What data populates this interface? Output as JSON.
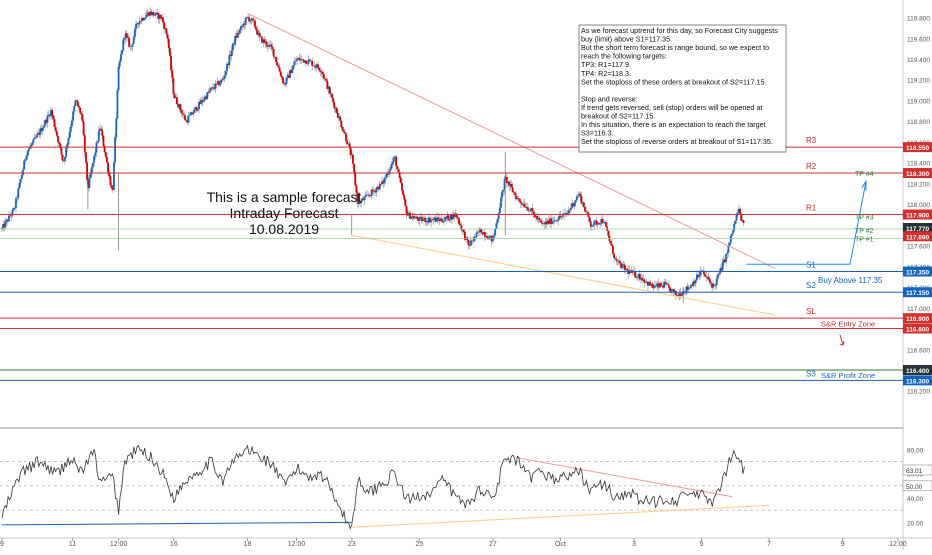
{
  "chart_data": {
    "type": "candlestick",
    "main_panel": {
      "y_range": [
        115.85,
        119.95
      ],
      "y_ticks": [
        "119.800",
        "119.600",
        "119.400",
        "119.200",
        "119.000",
        "118.800",
        "118.600",
        "118.400",
        "118.200",
        "118.000",
        "117.800",
        "117.600",
        "117.400",
        "117.200",
        "117.000",
        "116.800",
        "116.600",
        "116.400",
        "116.200"
      ],
      "y_tick_values": [
        119.8,
        119.6,
        119.4,
        119.2,
        119.0,
        118.8,
        118.6,
        118.4,
        118.2,
        118.0,
        117.8,
        117.6,
        117.4,
        117.2,
        117.0,
        116.8,
        116.6,
        116.4,
        116.2
      ],
      "x_ticks": [
        {
          "label": "9",
          "x": 0
        },
        {
          "label": "11",
          "x": 11.5
        },
        {
          "label": "12:00",
          "x": 19
        },
        {
          "label": "16",
          "x": 28
        },
        {
          "label": "18",
          "x": 40
        },
        {
          "label": "12:00",
          "x": 48
        },
        {
          "label": "23",
          "x": 57
        },
        {
          "label": "25",
          "x": 68
        },
        {
          "label": "27",
          "x": 80
        },
        {
          "label": "Oct",
          "x": 91
        },
        {
          "label": "3",
          "x": 103
        },
        {
          "label": "5",
          "x": 114
        },
        {
          "label": "7",
          "x": 125
        },
        {
          "label": "9",
          "x": 137
        },
        {
          "label": "12:00",
          "x": 146
        }
      ],
      "x_range": [
        0,
        146.5
      ],
      "annotation_lines": [
        "This is a sample forecast",
        "Intraday Forecast",
        "10.08.2019"
      ],
      "note_lines": [
        "As we forecast uptrend for this day, so Forecast City suggests",
        "buy (limit) above S1=117.35.",
        "But the short term forecast is range bound, so we expect to",
        "reach the following targets:",
        "TP3: R1=117.9.",
        "TP4: R2=118.3.",
        "Set the stoploss of these orders at breakout of S2=117.15.",
        "",
        "Stop and reverse:",
        "If trend gets reversed, sell (stop) orders will be opened at",
        "breakout of S2=117.15.",
        "In this situation, there is an expectation to reach the target",
        "S3=116.3.",
        "Set the stoploss of reverse orders at breakout of S1=117.35."
      ],
      "levels": [
        {
          "label": "R3",
          "value": 118.55,
          "tag": "118.550",
          "color": "#d32f2f",
          "label_color": "#c62828"
        },
        {
          "label": "R2",
          "value": 118.3,
          "tag": "118.300",
          "color": "#d32f2f",
          "label_color": "#c62828"
        },
        {
          "label": "R1",
          "value": 117.9,
          "tag": "117.900",
          "color": "#d32f2f",
          "label_color": "#c62828"
        },
        {
          "label": "S1",
          "value": 117.35,
          "tag": "117.350",
          "color": "#1565c0",
          "label_color": "#1565c0"
        },
        {
          "label": "S2",
          "value": 117.15,
          "tag": "117.150",
          "color": "#1565c0",
          "label_color": "#1565c0"
        },
        {
          "label": "SL",
          "value": 116.9,
          "tag": "116.900",
          "color": "#d32f2f",
          "label_color": "#c62828"
        },
        {
          "label": "",
          "value": 116.8,
          "tag": "116.800",
          "color": "#d32f2f",
          "label_color": "#c62828"
        },
        {
          "label": "",
          "value": 116.4,
          "tag": "116.400",
          "color": "#2e7d32",
          "label_color": "#2e7d32",
          "tag_color": "#263238"
        },
        {
          "label": "S3",
          "value": 116.3,
          "tag": "116.300",
          "color": "#1565c0",
          "label_color": "#1565c0"
        }
      ],
      "price_tags": [
        {
          "tag": "117.770",
          "value": 117.77,
          "color": "#263238"
        },
        {
          "tag": "117.690",
          "value": 117.69,
          "color": "#d32f2f"
        }
      ],
      "tp_levels": [
        {
          "label": "TP #4",
          "value": 118.3
        },
        {
          "label": "TP #3",
          "value": 117.88
        },
        {
          "label": "TP #2",
          "value": 117.75
        },
        {
          "label": "TP #1",
          "value": 117.67
        }
      ],
      "tp_lines": [
        117.76,
        117.67
      ],
      "zones": [
        {
          "label": "S&R Entry Zone",
          "value": 116.85,
          "color": "#c62828"
        },
        {
          "label": "S&R Profit Zone",
          "value": 116.35,
          "color": "#1565c0"
        }
      ],
      "buy_label": "Buy Above 117.35",
      "trendlines": [
        {
          "color": "#ef9a9a",
          "from": [
            40,
            119.84
          ],
          "to": [
            126,
            117.38
          ]
        },
        {
          "color": "#ffcc80",
          "from": [
            57,
            117.7
          ],
          "to": [
            126,
            116.93
          ]
        }
      ],
      "close_anchors": [
        [
          0,
          117.76
        ],
        [
          2,
          117.95
        ],
        [
          4,
          118.5
        ],
        [
          6,
          118.68
        ],
        [
          8,
          118.9
        ],
        [
          10,
          118.4
        ],
        [
          12,
          119.0
        ],
        [
          13,
          118.85
        ],
        [
          14,
          118.15
        ],
        [
          16,
          118.75
        ],
        [
          18,
          118.1
        ],
        [
          19,
          119.3
        ],
        [
          20,
          119.65
        ],
        [
          21,
          119.5
        ],
        [
          22,
          119.75
        ],
        [
          24,
          119.85
        ],
        [
          26,
          119.8
        ],
        [
          27,
          119.6
        ],
        [
          28,
          119.05
        ],
        [
          30,
          118.8
        ],
        [
          32,
          118.95
        ],
        [
          34,
          119.1
        ],
        [
          36,
          119.2
        ],
        [
          38,
          119.6
        ],
        [
          40,
          119.8
        ],
        [
          41,
          119.75
        ],
        [
          42,
          119.6
        ],
        [
          44,
          119.5
        ],
        [
          46,
          119.15
        ],
        [
          48,
          119.4
        ],
        [
          50,
          119.38
        ],
        [
          52,
          119.3
        ],
        [
          54,
          118.98
        ],
        [
          56,
          118.65
        ],
        [
          57,
          118.45
        ],
        [
          58,
          118.0
        ],
        [
          60,
          118.1
        ],
        [
          62,
          118.2
        ],
        [
          64,
          118.45
        ],
        [
          66,
          117.9
        ],
        [
          68,
          117.85
        ],
        [
          70,
          117.85
        ],
        [
          72,
          117.85
        ],
        [
          74,
          117.9
        ],
        [
          76,
          117.6
        ],
        [
          78,
          117.75
        ],
        [
          80,
          117.65
        ],
        [
          82,
          118.25
        ],
        [
          84,
          118.05
        ],
        [
          86,
          117.95
        ],
        [
          88,
          117.8
        ],
        [
          90,
          117.85
        ],
        [
          92,
          117.9
        ],
        [
          94,
          118.1
        ],
        [
          96,
          117.8
        ],
        [
          98,
          117.85
        ],
        [
          100,
          117.45
        ],
        [
          102,
          117.35
        ],
        [
          104,
          117.3
        ],
        [
          106,
          117.2
        ],
        [
          108,
          117.22
        ],
        [
          110,
          117.12
        ],
        [
          112,
          117.2
        ],
        [
          114,
          117.35
        ],
        [
          116,
          117.2
        ],
        [
          117,
          117.35
        ],
        [
          118,
          117.5
        ],
        [
          120,
          117.95
        ],
        [
          121,
          117.76
        ]
      ]
    },
    "oscillator_panel": {
      "y_range": [
        8,
        95
      ],
      "y_ticks": [
        "80.00",
        "60.00",
        "40.00",
        "20.00"
      ],
      "y_tick_values": [
        80,
        60,
        40,
        20
      ],
      "tags": [
        {
          "tag": "63.01",
          "value": 63,
          "color": "#ffffff",
          "text_color": "#333333"
        },
        {
          "tag": "50.00",
          "value": 50,
          "color": "#ffffff",
          "text_color": "#333333"
        }
      ],
      "dashed_levels": [
        70,
        50,
        30
      ],
      "trendlines": [
        {
          "color": "#ef9a9a",
          "from": [
            84,
            73
          ],
          "to": [
            119,
            41
          ]
        },
        {
          "color": "#ffcc80",
          "from": [
            57,
            16
          ],
          "to": [
            125,
            34
          ]
        },
        {
          "color": "#1565c0",
          "from": [
            0,
            18
          ],
          "to": [
            57,
            20
          ]
        }
      ],
      "anchors": [
        [
          0,
          25
        ],
        [
          3,
          60
        ],
        [
          6,
          70
        ],
        [
          9,
          60
        ],
        [
          11,
          72
        ],
        [
          13,
          62
        ],
        [
          15,
          78
        ],
        [
          16,
          52
        ],
        [
          18,
          58
        ],
        [
          19,
          30
        ],
        [
          20,
          70
        ],
        [
          22,
          80
        ],
        [
          24,
          75
        ],
        [
          26,
          62
        ],
        [
          28,
          40
        ],
        [
          30,
          55
        ],
        [
          32,
          62
        ],
        [
          34,
          70
        ],
        [
          36,
          55
        ],
        [
          38,
          72
        ],
        [
          40,
          80
        ],
        [
          42,
          74
        ],
        [
          44,
          68
        ],
        [
          46,
          50
        ],
        [
          48,
          64
        ],
        [
          50,
          58
        ],
        [
          52,
          60
        ],
        [
          54,
          45
        ],
        [
          56,
          22
        ],
        [
          57,
          16
        ],
        [
          58,
          55
        ],
        [
          60,
          45
        ],
        [
          62,
          52
        ],
        [
          64,
          60
        ],
        [
          66,
          38
        ],
        [
          68,
          42
        ],
        [
          70,
          45
        ],
        [
          72,
          55
        ],
        [
          74,
          40
        ],
        [
          76,
          35
        ],
        [
          78,
          48
        ],
        [
          80,
          40
        ],
        [
          82,
          72
        ],
        [
          84,
          70
        ],
        [
          86,
          56
        ],
        [
          88,
          62
        ],
        [
          90,
          55
        ],
        [
          92,
          58
        ],
        [
          94,
          62
        ],
        [
          96,
          46
        ],
        [
          98,
          52
        ],
        [
          100,
          40
        ],
        [
          102,
          45
        ],
        [
          104,
          38
        ],
        [
          106,
          36
        ],
        [
          108,
          40
        ],
        [
          110,
          38
        ],
        [
          112,
          44
        ],
        [
          114,
          42
        ],
        [
          116,
          36
        ],
        [
          118,
          60
        ],
        [
          119,
          78
        ],
        [
          120,
          70
        ],
        [
          121,
          63
        ]
      ]
    }
  }
}
